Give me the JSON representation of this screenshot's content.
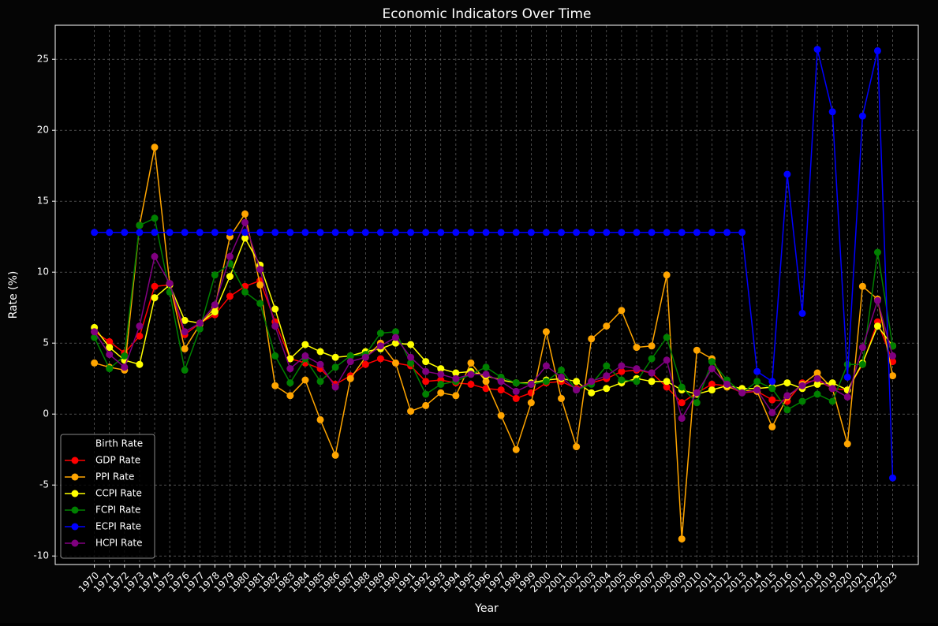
{
  "chart_data": {
    "type": "line",
    "title": "Economic Indicators Over Time",
    "xlabel": "Year",
    "ylabel": "Rate (%)",
    "x": [
      1970,
      1971,
      1972,
      1973,
      1974,
      1975,
      1976,
      1977,
      1978,
      1979,
      1980,
      1981,
      1982,
      1983,
      1984,
      1985,
      1986,
      1987,
      1988,
      1989,
      1990,
      1991,
      1992,
      1993,
      1994,
      1995,
      1996,
      1997,
      1998,
      1999,
      2000,
      2001,
      2002,
      2003,
      2004,
      2005,
      2006,
      2007,
      2008,
      2009,
      2010,
      2011,
      2012,
      2013,
      2014,
      2015,
      2016,
      2017,
      2018,
      2019,
      2020,
      2021,
      2022,
      2023
    ],
    "xticks": [
      1970,
      1971,
      1972,
      1973,
      1974,
      1975,
      1976,
      1977,
      1978,
      1979,
      1980,
      1981,
      1982,
      1983,
      1984,
      1985,
      1986,
      1987,
      1988,
      1989,
      1990,
      1991,
      1992,
      1993,
      1994,
      1995,
      1996,
      1997,
      1998,
      1999,
      2000,
      2001,
      2002,
      2003,
      2004,
      2005,
      2006,
      2007,
      2008,
      2009,
      2010,
      2011,
      2012,
      2013,
      2014,
      2015,
      2016,
      2017,
      2018,
      2019,
      2020,
      2021,
      2022,
      2023
    ],
    "xlim": [
      1967.4,
      2024.7
    ],
    "ylim": [
      -10.6,
      27.4
    ],
    "yticks": [
      -10,
      -5,
      0,
      5,
      10,
      15,
      20,
      25
    ],
    "grid": true,
    "legend": "lower left",
    "series": [
      {
        "name": "Birth Rate",
        "color": "#000000",
        "values": [
          null,
          null,
          null,
          null,
          null,
          null,
          null,
          null,
          null,
          null,
          null,
          null,
          null,
          null,
          null,
          null,
          null,
          null,
          null,
          null,
          null,
          null,
          null,
          null,
          null,
          null,
          null,
          null,
          null,
          null,
          null,
          null,
          null,
          null,
          null,
          null,
          null,
          null,
          null,
          null,
          null,
          null,
          null,
          null,
          null,
          null,
          null,
          null,
          null,
          null,
          null,
          null,
          null,
          null
        ]
      },
      {
        "name": "GDP Rate",
        "color": "#ff0000",
        "values": [
          5.8,
          5.1,
          4.3,
          5.5,
          9.0,
          9.1,
          5.6,
          6.4,
          7.0,
          8.3,
          9.0,
          9.4,
          6.5,
          3.9,
          3.6,
          3.2,
          2.1,
          2.7,
          3.5,
          3.9,
          3.6,
          3.4,
          2.3,
          2.4,
          2.2,
          2.1,
          1.8,
          1.7,
          1.1,
          1.5,
          2.2,
          2.3,
          1.8,
          2.2,
          2.5,
          3.0,
          3.1,
          2.9,
          1.9,
          0.8,
          1.5,
          2.1,
          2.0,
          1.5,
          1.6,
          1.0,
          0.9,
          2.2,
          2.4,
          1.8,
          1.7,
          3.5,
          6.5,
          3.7
        ]
      },
      {
        "name": "PPI Rate",
        "color": "#ffa500",
        "values": [
          3.6,
          3.3,
          3.1,
          13.3,
          18.8,
          9.2,
          4.6,
          6.3,
          7.5,
          12.5,
          14.1,
          9.1,
          2.0,
          1.3,
          2.4,
          -0.4,
          -2.9,
          2.5,
          4.0,
          5.0,
          3.6,
          0.2,
          0.6,
          1.5,
          1.3,
          3.6,
          2.3,
          -0.1,
          -2.5,
          0.8,
          5.8,
          1.1,
          -2.3,
          5.3,
          6.2,
          7.3,
          4.7,
          4.8,
          9.8,
          -8.8,
          4.5,
          3.9,
          1.9,
          1.7,
          1.6,
          -0.9,
          1.2,
          2.1,
          2.9,
          1.8,
          -2.1,
          9.0,
          8.1,
          2.7
        ]
      },
      {
        "name": "CCPI Rate",
        "color": "#ffff00",
        "values": [
          6.1,
          4.7,
          3.8,
          3.5,
          8.2,
          9.1,
          6.6,
          6.4,
          7.2,
          9.7,
          12.4,
          10.5,
          7.4,
          3.9,
          4.9,
          4.4,
          4.0,
          4.1,
          4.4,
          4.6,
          5.0,
          4.9,
          3.7,
          3.2,
          2.9,
          3.0,
          2.7,
          2.4,
          2.2,
          2.2,
          2.4,
          2.5,
          2.3,
          1.5,
          1.8,
          2.2,
          2.5,
          2.3,
          2.3,
          1.7,
          1.4,
          1.7,
          2.0,
          1.8,
          1.8,
          1.9,
          2.2,
          1.8,
          2.1,
          2.2,
          1.7,
          3.6,
          6.2,
          4.8
        ]
      },
      {
        "name": "FCPI Rate",
        "color": "#008000",
        "values": [
          5.4,
          3.2,
          4.1,
          13.3,
          13.8,
          8.6,
          3.1,
          6.0,
          9.8,
          10.6,
          8.6,
          7.8,
          4.1,
          2.2,
          3.9,
          2.3,
          3.3,
          4.1,
          4.2,
          5.7,
          5.8,
          3.6,
          1.4,
          2.1,
          2.3,
          2.8,
          3.3,
          2.6,
          2.2,
          2.1,
          2.3,
          3.1,
          1.7,
          2.1,
          3.4,
          2.4,
          2.3,
          3.9,
          5.4,
          1.9,
          0.8,
          3.7,
          2.4,
          1.5,
          2.3,
          1.8,
          0.3,
          0.9,
          1.4,
          0.9,
          3.5,
          3.5,
          11.4,
          4.8
        ]
      },
      {
        "name": "ECPI Rate",
        "color": "#0000ff",
        "values": [
          12.8,
          12.8,
          12.8,
          12.8,
          12.8,
          12.8,
          12.8,
          12.8,
          12.8,
          12.8,
          12.8,
          12.8,
          12.8,
          12.8,
          12.8,
          12.8,
          12.8,
          12.8,
          12.8,
          12.8,
          12.8,
          12.8,
          12.8,
          12.8,
          12.8,
          12.8,
          12.8,
          12.8,
          12.8,
          12.8,
          12.8,
          12.8,
          12.8,
          12.8,
          12.8,
          12.8,
          12.8,
          12.8,
          12.8,
          12.8,
          12.8,
          12.8,
          12.8,
          12.8,
          3.0,
          2.3,
          16.9,
          7.1,
          25.7,
          21.3,
          2.6,
          21.0,
          25.6,
          -4.5
        ]
      },
      {
        "name": "HCPI Rate",
        "color": "#800080",
        "values": [
          5.8,
          4.2,
          3.3,
          6.2,
          11.1,
          9.2,
          5.8,
          6.4,
          7.7,
          11.1,
          13.5,
          10.2,
          6.2,
          3.2,
          4.1,
          3.5,
          1.9,
          3.7,
          4.0,
          4.8,
          5.4,
          4.0,
          3.0,
          2.8,
          2.5,
          2.8,
          2.8,
          2.3,
          1.6,
          2.1,
          3.4,
          2.6,
          1.7,
          2.3,
          2.7,
          3.4,
          3.2,
          2.9,
          3.8,
          -0.3,
          1.5,
          3.2,
          2.1,
          1.5,
          1.7,
          0.1,
          1.3,
          2.0,
          2.5,
          1.8,
          1.2,
          4.7,
          8.0,
          4.1
        ]
      }
    ]
  }
}
